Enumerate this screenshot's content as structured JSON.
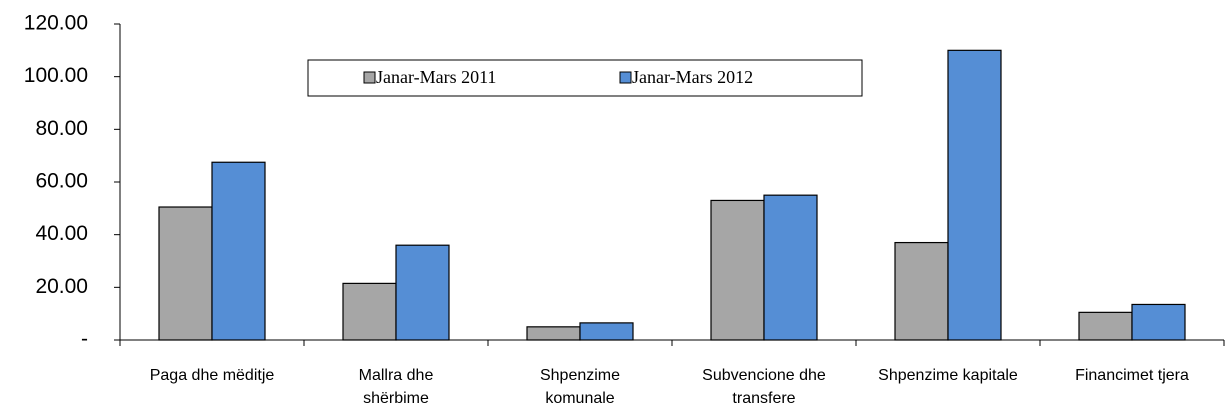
{
  "chart_data": {
    "type": "bar",
    "categories": [
      "Paga dhe mëditje",
      "Mallra dhe shërbime",
      "Shpenzime komunale",
      "Subvencione dhe transfere",
      "Shpenzime kapitale",
      "Financimet tjera"
    ],
    "series": [
      {
        "name": "Janar-Mars 2011",
        "color": "#a6a6a6",
        "values": [
          50.5,
          21.5,
          5,
          53,
          37,
          10.5
        ]
      },
      {
        "name": "Janar-Mars 2012",
        "color": "#558ed5",
        "values": [
          67.5,
          36,
          6.5,
          55,
          110,
          13.5
        ]
      }
    ],
    "ylim": [
      0,
      120
    ],
    "yticks": [
      {
        "value": 0,
        "label": "-"
      },
      {
        "value": 20,
        "label": "20.00"
      },
      {
        "value": 40,
        "label": "40.00"
      },
      {
        "value": 60,
        "label": "60.00"
      },
      {
        "value": 80,
        "label": "80.00"
      },
      {
        "value": 100,
        "label": "100.00"
      },
      {
        "value": 120,
        "label": "120.00"
      }
    ],
    "legend": "top"
  }
}
